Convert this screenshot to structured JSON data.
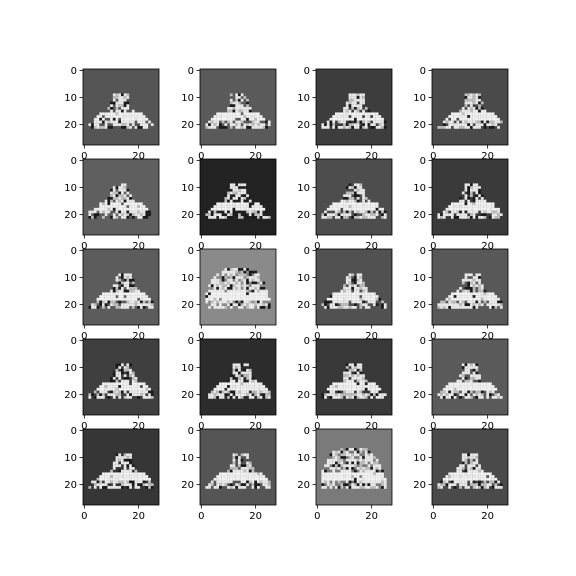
{
  "figure": {
    "rows": 5,
    "cols": 4,
    "image_size": 28,
    "colormap": "grayscale",
    "x_ticks": [
      "0",
      "20"
    ],
    "y_ticks": [
      "0",
      "10",
      "20"
    ],
    "panel_backgrounds": [
      "#555555",
      "#5a5a5a",
      "#3d3d3d",
      "#4a4a4a",
      "#5f5f5f",
      "#222222",
      "#4d4d4d",
      "#3a3a3a",
      "#5c5c5c",
      "#8a8a8a",
      "#515151",
      "#585858",
      "#3f3f3f",
      "#2c2c2c",
      "#383838",
      "#5a5a5a",
      "#363636",
      "#555555",
      "#7a7a7a",
      "#4a4a4a"
    ]
  }
}
